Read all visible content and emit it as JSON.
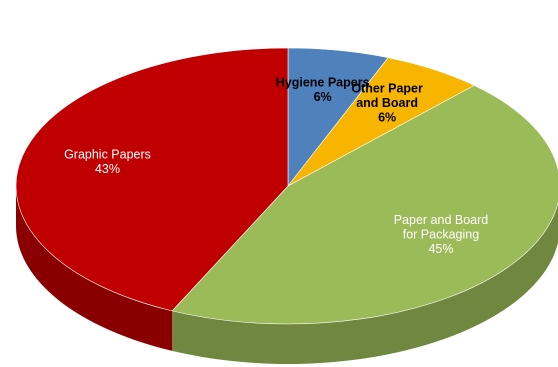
{
  "chart_data": {
    "type": "pie",
    "title": "",
    "slices": [
      {
        "name_lines": [
          "Hygiene Papers"
        ],
        "label": "6%",
        "value": 6,
        "color": "#4F81BD",
        "label_color": "dark"
      },
      {
        "name_lines": [
          "Other Paper",
          "and Board"
        ],
        "label": "6%",
        "value": 6,
        "color": "#F7B500",
        "label_color": "dark"
      },
      {
        "name_lines": [
          "Paper and Board",
          "for Packaging"
        ],
        "label": "45%",
        "value": 45,
        "color": "#9BBB59",
        "label_color": "light"
      },
      {
        "name_lines": [
          "Graphic Papers"
        ],
        "label": "43%",
        "value": 43,
        "color": "#C00000",
        "label_color": "light"
      }
    ],
    "legend": "none",
    "style": "3d-tilted"
  }
}
